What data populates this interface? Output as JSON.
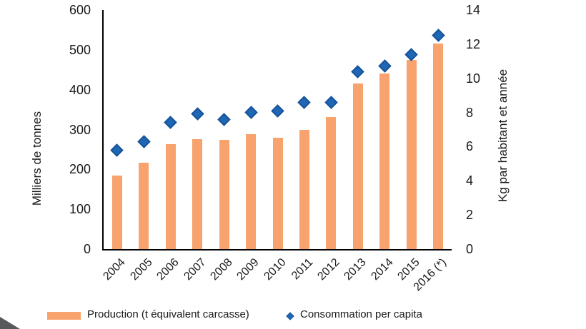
{
  "chart_data": {
    "type": "combo",
    "categories": [
      "2004",
      "2005",
      "2006",
      "2007",
      "2008",
      "2009",
      "2010",
      "2011",
      "2012",
      "2013",
      "2014",
      "2015",
      "2016 (*)"
    ],
    "series": [
      {
        "name": "Production (t équivalent carcasse)",
        "type": "bar",
        "axis": "left",
        "values": [
          185,
          217,
          263,
          276,
          274,
          289,
          279,
          300,
          331,
          415,
          441,
          474,
          515
        ]
      },
      {
        "name": "Consommation per capita",
        "type": "scatter",
        "marker": "diamond",
        "axis": "right",
        "values": [
          5.8,
          6.3,
          7.4,
          7.9,
          7.6,
          8.0,
          8.1,
          8.6,
          8.6,
          10.4,
          10.7,
          11.4,
          12.5
        ]
      }
    ],
    "left_axis": {
      "title": "Milliers de tonnes",
      "min": 0,
      "max": 600,
      "ticks": [
        0,
        100,
        200,
        300,
        400,
        500,
        600
      ]
    },
    "right_axis": {
      "title": "Kg par habitant et année",
      "min": 0,
      "max": 14,
      "ticks": [
        0,
        2,
        4,
        6,
        8,
        10,
        12,
        14
      ]
    },
    "grid": false,
    "legend_position": "bottom"
  },
  "legend": {
    "bar_label": "Production (t équivalent carcasse)",
    "scatter_label": "Consommation per capita"
  },
  "colors": {
    "bar": "#F8A26E",
    "diamond_fill": "#1F67B4",
    "diamond_border": "#16539A",
    "axis_line": "#000000",
    "text": "#1A1A1A",
    "corner_artifact": "#58595B"
  }
}
